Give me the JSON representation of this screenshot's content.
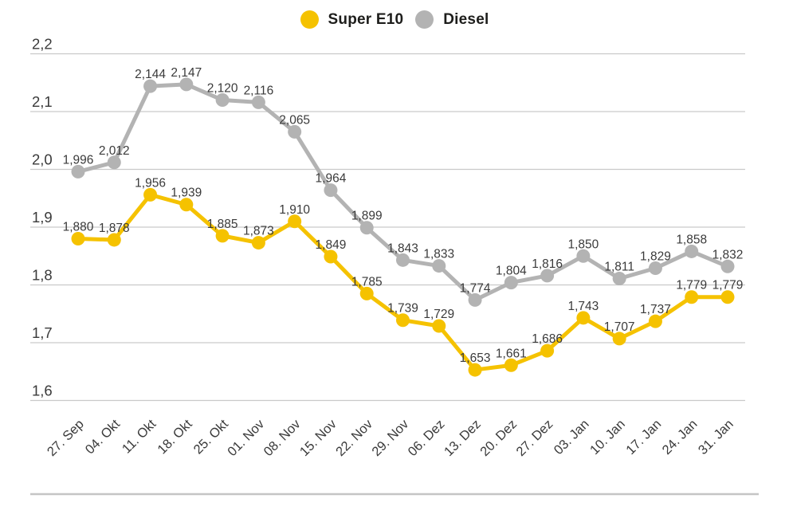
{
  "legend": {
    "items": [
      {
        "id": "super-e10",
        "label": "Super E10",
        "color": "#f5c200"
      },
      {
        "id": "diesel",
        "label": "Diesel",
        "color": "#b3b3b3"
      }
    ]
  },
  "chart_data": {
    "type": "line",
    "x": [
      "27. Sep",
      "04. Okt",
      "11. Okt",
      "18. Okt",
      "25. Okt",
      "01. Nov",
      "08. Nov",
      "15. Nov",
      "22. Nov",
      "29. Nov",
      "06. Dez",
      "13. Dez",
      "20. Dez",
      "27. Dez",
      "03. Jan",
      "10. Jan",
      "17. Jan",
      "24. Jan",
      "31. Jan"
    ],
    "series": [
      {
        "id": "super-e10",
        "name": "Super E10",
        "color": "#f5c200",
        "values": [
          1.88,
          1.878,
          1.956,
          1.939,
          1.885,
          1.873,
          1.91,
          1.849,
          1.785,
          1.739,
          1.729,
          1.653,
          1.661,
          1.686,
          1.743,
          1.707,
          1.737,
          1.779,
          1.779
        ],
        "labels": [
          "1,880",
          "1,878",
          "1,956",
          "1,939",
          "1,885",
          "1,873",
          "1,910",
          "1,849",
          "1,785",
          "1,739",
          "1,729",
          "1,653",
          "1,661",
          "1,686",
          "1,743",
          "1,707",
          "1,737",
          "1,779",
          "1,779"
        ]
      },
      {
        "id": "diesel",
        "name": "Diesel",
        "color": "#b3b3b3",
        "values": [
          1.996,
          2.012,
          2.144,
          2.147,
          2.12,
          2.116,
          2.065,
          1.964,
          1.899,
          1.843,
          1.833,
          1.774,
          1.804,
          1.816,
          1.85,
          1.811,
          1.829,
          1.858,
          1.832
        ],
        "labels": [
          "1,996",
          "2,012",
          "2,144",
          "2,147",
          "2,120",
          "2,116",
          "2,065",
          "1,964",
          "1,899",
          "1,843",
          "1,833",
          "1,774",
          "1,804",
          "1,816",
          "1,850",
          "1,811",
          "1,829",
          "1,858",
          "1,832"
        ]
      }
    ],
    "ylim": [
      1.6,
      2.2
    ],
    "y_ticks": [
      "2,2",
      "2,1",
      "2,0",
      "1,9",
      "1,8",
      "1,7",
      "1,6"
    ],
    "grid": true,
    "legend_position": "top-center",
    "decimal_separator": ","
  },
  "colors": {
    "background": "#ffffff",
    "gridline": "#c9c9c9",
    "axis_baseline": "#c5c5c5",
    "text": "#3a3a3a",
    "legend_text": "#1d1d1b"
  }
}
